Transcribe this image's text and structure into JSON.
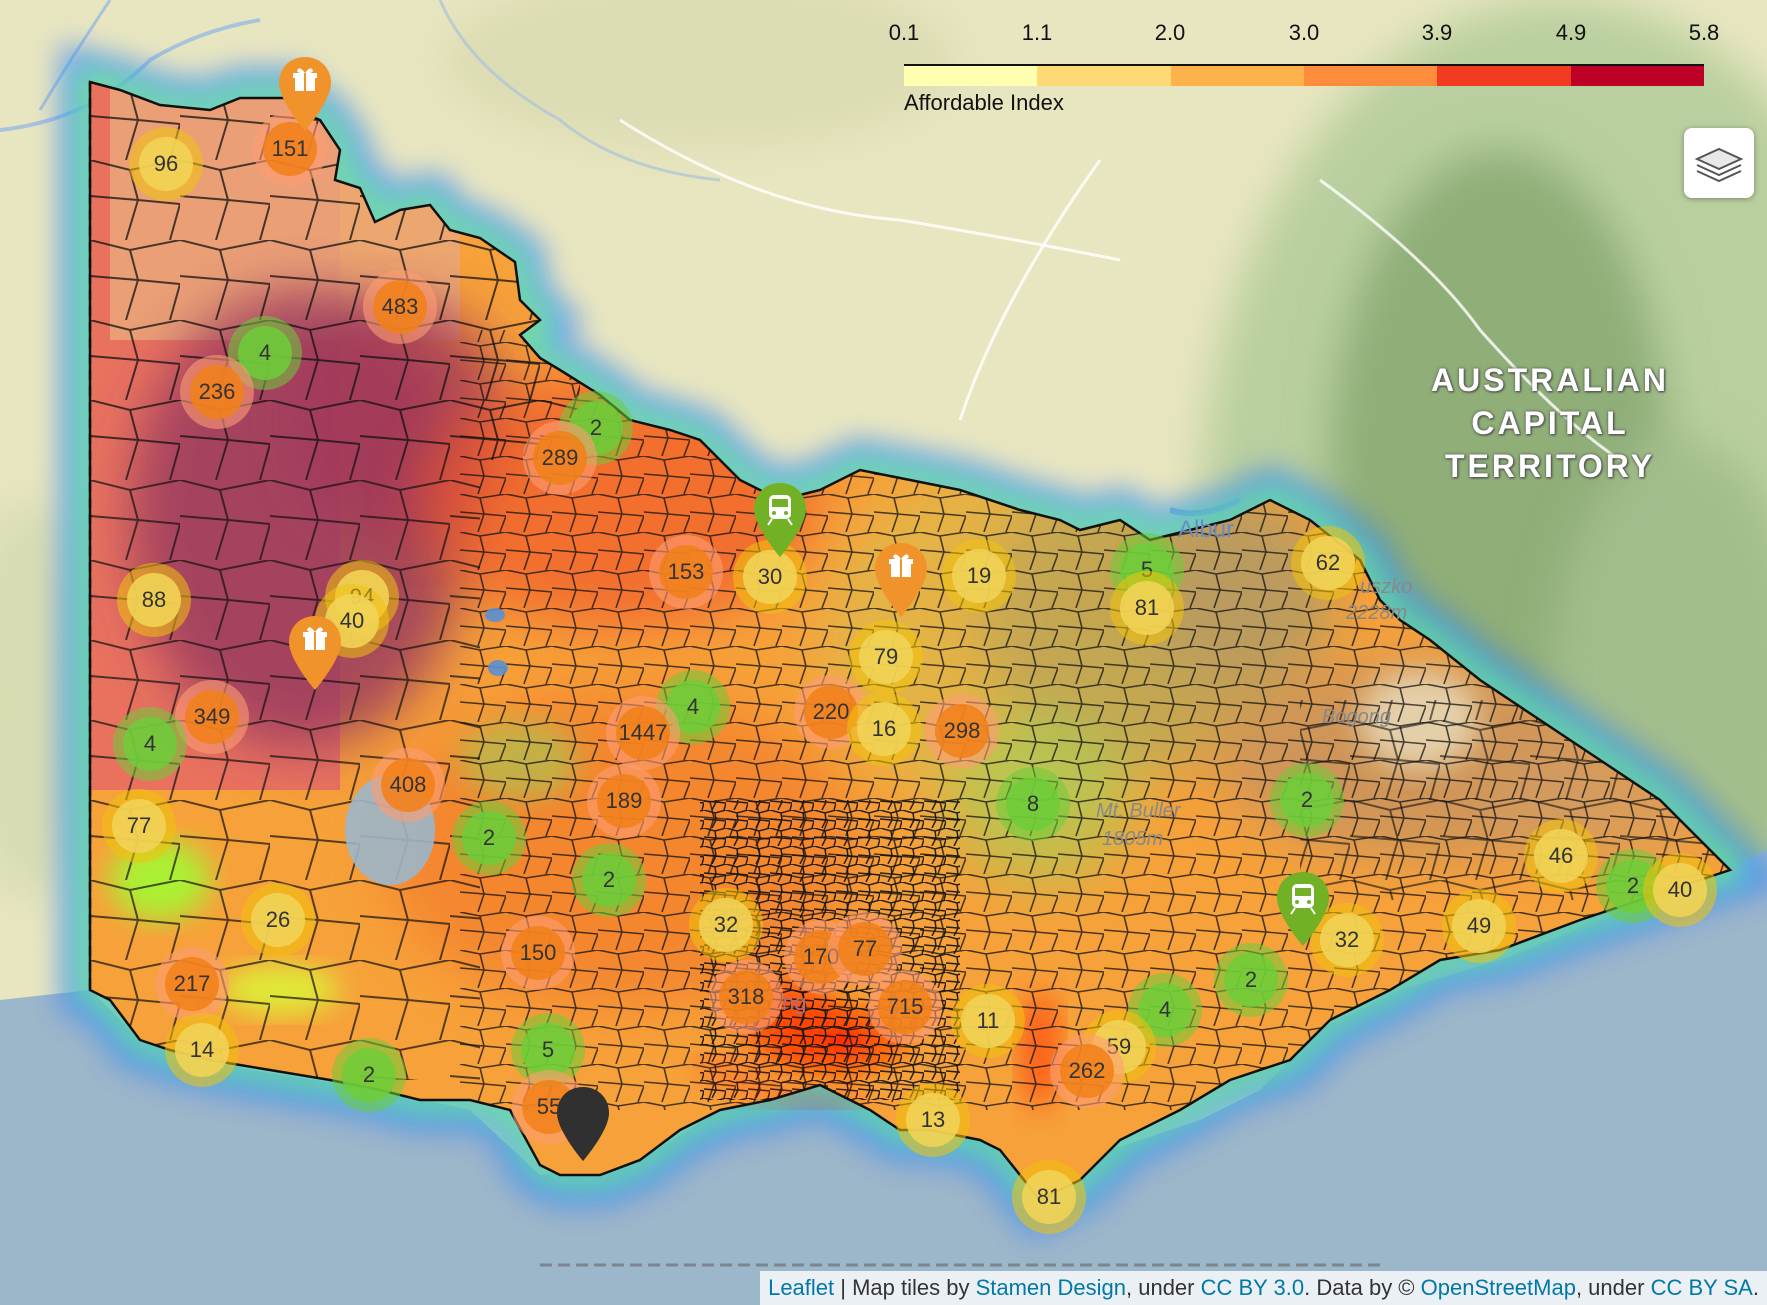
{
  "legend": {
    "ticks": [
      "0.1",
      "1.1",
      "2.0",
      "3.0",
      "3.9",
      "4.9",
      "5.8"
    ],
    "title": "Affordable Index",
    "colors": [
      "#ffffb2",
      "#fed976",
      "#feb24c",
      "#fd8d3c",
      "#f03b20",
      "#bd0026"
    ]
  },
  "layers_control": {
    "icon": "layers-icon"
  },
  "base_labels": {
    "act_line1": "AUSTRALIAN",
    "act_line2": "CAPITAL",
    "act_line3": "TERRITORY",
    "albury": "Albur",
    "kosciuszko": "uszko",
    "kosciuszko_elev": "2228m",
    "bogong": "Bogong",
    "buller": "Mt. Buller",
    "buller_elev": "1805m",
    "geelong": "ng"
  },
  "clusters": [
    {
      "label": "96",
      "color": "yellow"
    },
    {
      "label": "151",
      "color": "orange"
    },
    {
      "label": "483",
      "color": "orange"
    },
    {
      "label": "4",
      "color": "green"
    },
    {
      "label": "236",
      "color": "orange"
    },
    {
      "label": "2",
      "color": "green"
    },
    {
      "label": "289",
      "color": "orange"
    },
    {
      "label": "88",
      "color": "yellow"
    },
    {
      "label": "94",
      "color": "yellow"
    },
    {
      "label": "40",
      "color": "yellow"
    },
    {
      "label": "153",
      "color": "orange"
    },
    {
      "label": "30",
      "color": "yellow"
    },
    {
      "label": "19",
      "color": "yellow"
    },
    {
      "label": "5",
      "color": "green"
    },
    {
      "label": "81",
      "color": "yellow"
    },
    {
      "label": "62",
      "color": "yellow"
    },
    {
      "label": "4",
      "color": "green"
    },
    {
      "label": "349",
      "color": "orange"
    },
    {
      "label": "4",
      "color": "green"
    },
    {
      "label": "79",
      "color": "yellow"
    },
    {
      "label": "1447",
      "color": "orange"
    },
    {
      "label": "220",
      "color": "orange"
    },
    {
      "label": "16",
      "color": "yellow"
    },
    {
      "label": "298",
      "color": "orange"
    },
    {
      "label": "408",
      "color": "orange"
    },
    {
      "label": "77",
      "color": "yellow"
    },
    {
      "label": "189",
      "color": "orange"
    },
    {
      "label": "2",
      "color": "green"
    },
    {
      "label": "8",
      "color": "green"
    },
    {
      "label": "2",
      "color": "green"
    },
    {
      "label": "2",
      "color": "green"
    },
    {
      "label": "46",
      "color": "yellow"
    },
    {
      "label": "26",
      "color": "yellow"
    },
    {
      "label": "32",
      "color": "yellow"
    },
    {
      "label": "150",
      "color": "orange"
    },
    {
      "label": "170",
      "color": "orange"
    },
    {
      "label": "77",
      "color": "orange"
    },
    {
      "label": "2",
      "color": "green"
    },
    {
      "label": "40",
      "color": "yellow"
    },
    {
      "label": "49",
      "color": "yellow"
    },
    {
      "label": "32",
      "color": "yellow"
    },
    {
      "label": "217",
      "color": "orange"
    },
    {
      "label": "318",
      "color": "orange"
    },
    {
      "label": "715",
      "color": "orange"
    },
    {
      "label": "2",
      "color": "green"
    },
    {
      "label": "11",
      "color": "yellow"
    },
    {
      "label": "4",
      "color": "green"
    },
    {
      "label": "14",
      "color": "yellow"
    },
    {
      "label": "2",
      "color": "green"
    },
    {
      "label": "5",
      "color": "green"
    },
    {
      "label": "59",
      "color": "yellow"
    },
    {
      "label": "262",
      "color": "orange"
    },
    {
      "label": "55",
      "color": "orange"
    },
    {
      "label": "13",
      "color": "yellow"
    },
    {
      "label": "81",
      "color": "yellow"
    }
  ],
  "markers": [
    {
      "type": "gift",
      "color": "#f0932b",
      "icon": "gift-icon"
    },
    {
      "type": "gift",
      "color": "#f0932b",
      "icon": "gift-icon"
    },
    {
      "type": "gift",
      "color": "#f0932b",
      "icon": "gift-icon"
    },
    {
      "type": "train",
      "color": "#72b026",
      "icon": "train-icon"
    },
    {
      "type": "train",
      "color": "#72b026",
      "icon": "train-icon"
    },
    {
      "type": "pin",
      "color": "#303030",
      "icon": "pin-icon"
    }
  ],
  "attribution": {
    "leaflet": "Leaflet",
    "sep": " | Map tiles by ",
    "stamen": "Stamen Design",
    "under1": ", under ",
    "cc30": "CC BY 3.0",
    "data": ". Data by © ",
    "osm": "OpenStreetMap",
    "under2": ", under ",
    "ccbysa": "CC BY SA",
    "end": "."
  }
}
